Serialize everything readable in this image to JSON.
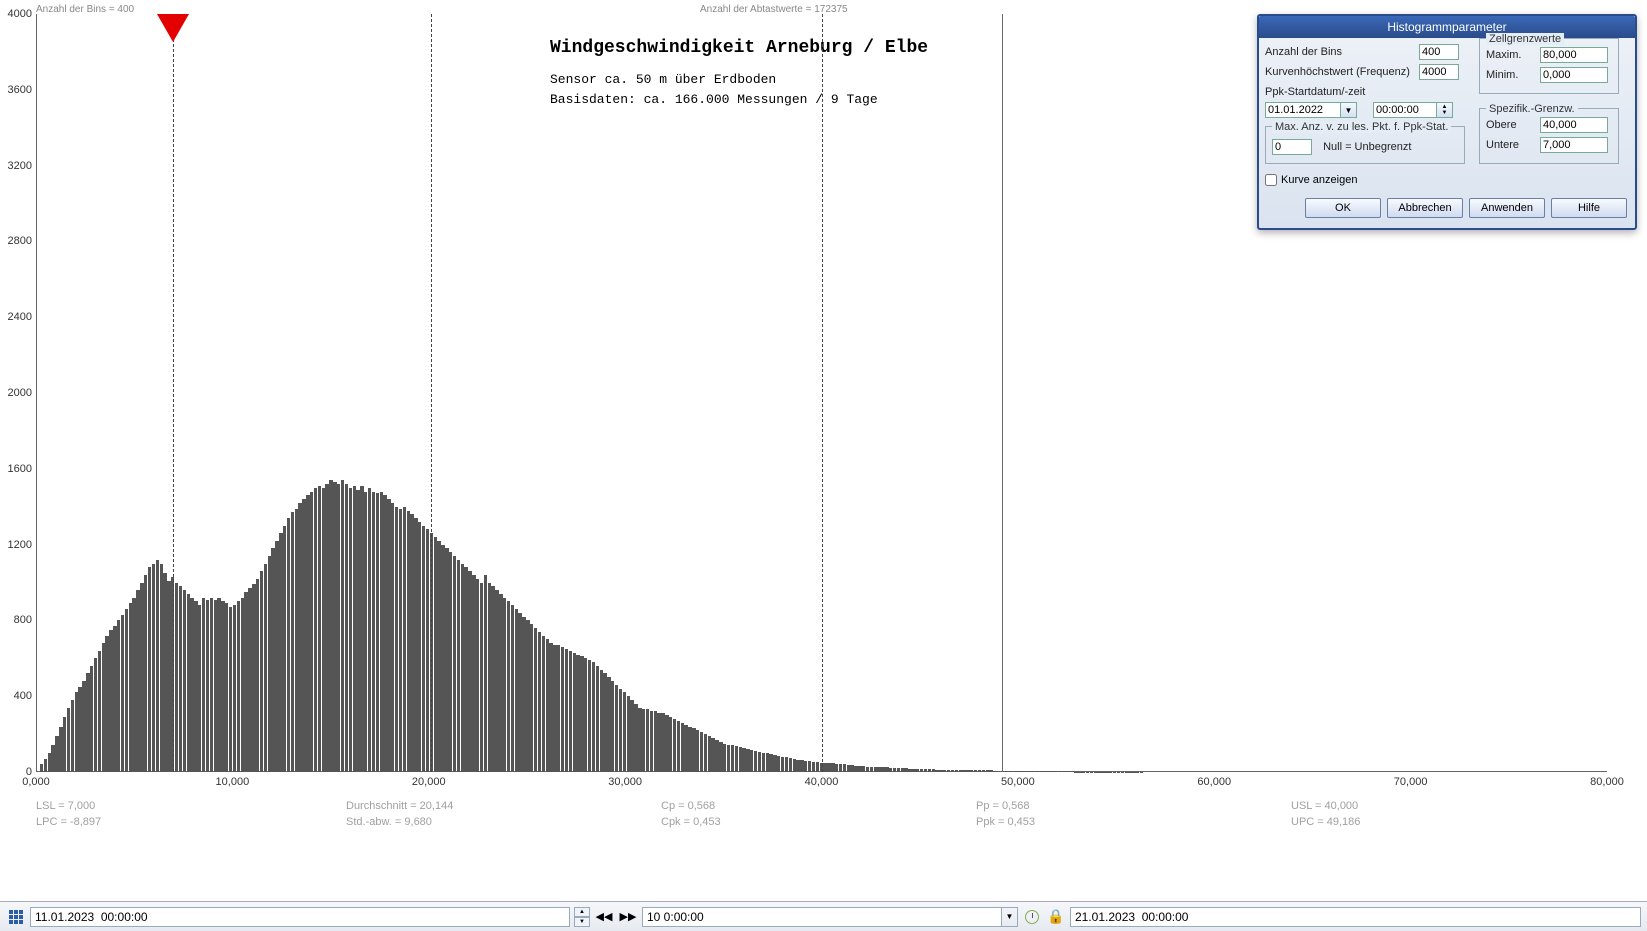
{
  "header": {
    "bins_label": "Anzahl der Bins =  400",
    "samples_label": "Anzahl der Abtastwerte = 172375"
  },
  "chart": {
    "type": "histogram",
    "title": "Windgeschwindigkeit  Arneburg / Elbe",
    "subtitle1": "Sensor ca. 50 m über Erdboden",
    "subtitle2": "Basisdaten:  ca. 166.000 Messungen / 9 Tage",
    "title_fontsize": 18,
    "subtitle_fontsize": 13,
    "background_color": "#ffffff",
    "bar_color": "#555555",
    "axis_color": "#666666",
    "marker_color": "#e30000",
    "ylim": [
      0,
      4000
    ],
    "ytick_step": 400,
    "yticks": [
      "0",
      "400",
      "800",
      "1200",
      "1600",
      "2000",
      "2400",
      "2800",
      "3200",
      "3600",
      "4000"
    ],
    "xlim": [
      0,
      80
    ],
    "xtick_step": 10,
    "xticks": [
      "0,000",
      "10,000",
      "20,000",
      "30,000",
      "40,000",
      "50,000",
      "60,000",
      "70,000",
      "80,000"
    ],
    "marker_x": 7.0,
    "vlines": [
      7.0,
      20.14,
      40.0,
      49.19
    ],
    "bar_data_x_max": 80,
    "bar_values": [
      0,
      40,
      70,
      100,
      140,
      190,
      240,
      290,
      340,
      380,
      420,
      450,
      480,
      520,
      560,
      600,
      640,
      680,
      720,
      750,
      770,
      800,
      830,
      860,
      890,
      920,
      960,
      1000,
      1040,
      1080,
      1100,
      1120,
      1100,
      1050,
      1010,
      1030,
      1000,
      980,
      960,
      940,
      920,
      900,
      880,
      920,
      910,
      920,
      910,
      920,
      900,
      890,
      870,
      880,
      900,
      920,
      950,
      970,
      990,
      1020,
      1060,
      1100,
      1140,
      1180,
      1220,
      1260,
      1300,
      1340,
      1370,
      1390,
      1420,
      1440,
      1460,
      1480,
      1500,
      1510,
      1500,
      1520,
      1540,
      1530,
      1520,
      1540,
      1520,
      1500,
      1510,
      1490,
      1510,
      1480,
      1500,
      1480,
      1470,
      1480,
      1460,
      1440,
      1420,
      1400,
      1390,
      1400,
      1380,
      1360,
      1340,
      1320,
      1300,
      1280,
      1260,
      1240,
      1220,
      1200,
      1180,
      1160,
      1140,
      1120,
      1100,
      1080,
      1060,
      1040,
      1020,
      1000,
      1040,
      1000,
      980,
      960,
      940,
      920,
      900,
      880,
      860,
      840,
      820,
      800,
      780,
      760,
      740,
      720,
      700,
      680,
      670,
      670,
      660,
      650,
      640,
      630,
      620,
      610,
      600,
      590,
      580,
      560,
      540,
      520,
      500,
      480,
      460,
      440,
      420,
      400,
      380,
      360,
      340,
      330,
      330,
      320,
      320,
      310,
      310,
      300,
      290,
      280,
      270,
      260,
      250,
      240,
      230,
      220,
      210,
      200,
      190,
      180,
      170,
      160,
      150,
      140,
      140,
      135,
      130,
      125,
      120,
      115,
      110,
      105,
      100,
      100,
      95,
      90,
      85,
      80,
      80,
      75,
      70,
      65,
      65,
      60,
      60,
      55,
      55,
      50,
      50,
      48,
      46,
      44,
      42,
      40,
      38,
      36,
      34,
      32,
      30,
      29,
      28,
      27,
      26,
      25,
      24,
      23,
      22,
      21,
      20,
      19,
      18,
      17,
      16,
      15,
      15,
      14,
      14,
      13,
      13,
      12,
      12,
      11,
      11,
      10,
      10,
      10,
      9,
      9,
      8,
      8,
      8,
      8,
      7,
      7,
      7,
      7,
      6,
      6,
      6,
      5,
      5,
      5,
      5,
      4,
      4,
      4,
      4,
      4,
      3,
      3,
      3,
      3,
      3,
      2,
      2,
      2,
      2,
      2,
      2,
      2,
      2,
      1,
      1,
      1,
      1,
      1,
      1,
      1,
      1,
      1,
      1,
      0,
      0,
      0,
      0,
      0,
      0,
      0,
      0,
      0,
      0,
      0,
      0,
      0,
      0,
      0,
      0,
      0,
      0,
      0,
      0,
      0,
      0,
      0,
      0,
      0,
      0,
      0,
      0,
      0,
      0,
      0,
      0,
      0,
      0,
      0,
      0,
      0,
      0,
      0,
      0,
      0,
      0,
      0,
      0,
      0,
      0,
      0,
      0,
      0,
      0,
      0,
      0,
      0,
      0,
      0,
      0,
      0,
      0,
      0,
      0,
      0,
      0,
      0,
      0,
      0,
      0,
      0,
      0,
      0,
      0,
      0,
      0,
      0,
      0,
      0,
      0,
      0,
      0,
      0,
      0,
      0,
      0,
      0,
      0,
      0,
      0,
      0,
      0,
      0,
      0,
      0,
      0,
      0,
      0,
      0,
      0,
      0,
      0,
      0,
      0,
      0,
      0,
      0,
      0,
      0,
      0,
      0,
      0,
      0,
      0,
      0,
      0,
      0,
      0,
      0,
      0,
      0,
      0,
      0,
      0
    ]
  },
  "stats": {
    "lsl": "LSL = 7,000",
    "lpc": "LPC = -8,897",
    "avg": "Durchschnitt = 20,144",
    "std": "Std.-abw. = 9,680",
    "cp": "Cp  = 0,568",
    "cpk": "Cpk = 0,453",
    "pp": "Pp  = 0,568",
    "ppk": "Ppk = 0,453",
    "usl": "USL = 40,000",
    "upc": "UPC = 49,186"
  },
  "dialog": {
    "title": "Histogrammparameter",
    "bins_label": "Anzahl der Bins",
    "bins_value": "400",
    "peak_label": "Kurvenhöchstwert (Frequenz)",
    "peak_value": "4000",
    "date_label": "Ppk-Startdatum/-zeit",
    "date_value": "01.01.2022",
    "time_value": "00:00:00",
    "cellbounds_label": "Zellgrenzwerte",
    "max_label": "Maxim.",
    "max_value": "80,000",
    "min_label": "Minim.",
    "min_value": "0,000",
    "speclimits_label": "Spezifik.-Grenzw.",
    "upper_label": "Obere",
    "upper_value": "40,000",
    "lower_label": "Untere",
    "lower_value": "7,000",
    "maxpts_label": "Max. Anz. v. zu les. Pkt. f. Ppk-Stat.",
    "maxpts_value": "0",
    "maxpts_hint": "Null = Unbegrenzt",
    "curve_checkbox": "Kurve anzeigen",
    "ok": "OK",
    "cancel": "Abbrechen",
    "apply": "Anwenden",
    "help": "Hilfe"
  },
  "toolbar": {
    "start_date": "11.01.2023  00:00:00",
    "interval": "10 0:00:00",
    "end_date": "21.01.2023  00:00:00"
  }
}
